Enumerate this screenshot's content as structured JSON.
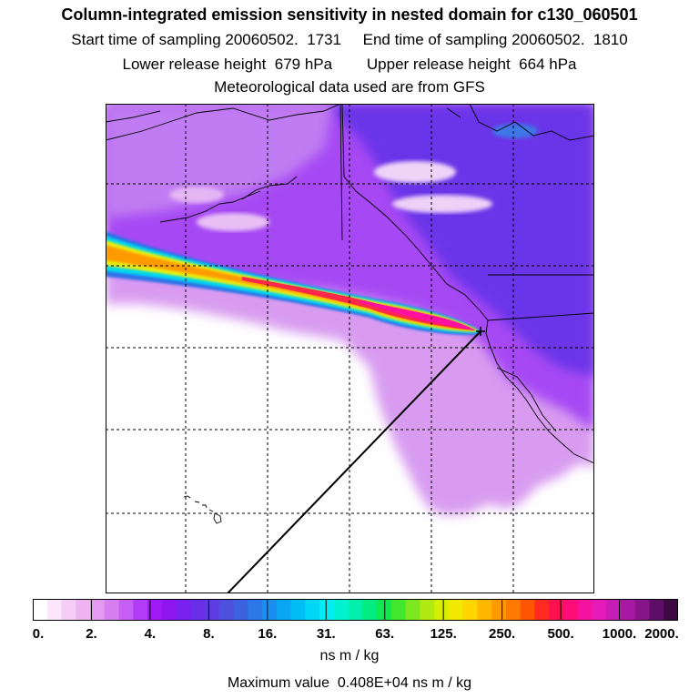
{
  "header": {
    "title": "Column-integrated emission sensitivity in nested domain for c130_060501",
    "sampling": "Start time of sampling 20060502.  1731     End time of sampling 20060502.  1810",
    "release": "Lower release height  679 hPa        Upper release height  664 hPa",
    "met": "Meteorological data used are from GFS"
  },
  "colorbar": {
    "unit": "ns m / kg",
    "tick_labels": [
      "0.",
      "2.",
      "4.",
      "8.",
      "16.",
      "31.",
      "63.",
      "125.",
      "250.",
      "500.",
      "1000.",
      "2000."
    ],
    "colors": [
      "#ffffff",
      "#fbe6fb",
      "#f6cdf6",
      "#f0b3f2",
      "#e39bf0",
      "#d77ff0",
      "#c55ff3",
      "#b03cf5",
      "#a01af5",
      "#8e14f0",
      "#7a20ee",
      "#6a2ee8",
      "#5d3de2",
      "#4d4fdd",
      "#3d62e0",
      "#2c78e8",
      "#1b8ff0",
      "#0aa6f2",
      "#00bdf3",
      "#00d6f5",
      "#00eef2",
      "#00f2d0",
      "#00efaa",
      "#00ec80",
      "#10e850",
      "#40e830",
      "#7de820",
      "#b0ea10",
      "#d8ee00",
      "#f2e800",
      "#ffd600",
      "#ffb800",
      "#ff9a00",
      "#ff7a00",
      "#ff5500",
      "#ff2a20",
      "#ff1050",
      "#ff0d78",
      "#f512a0",
      "#e51ab8",
      "#c81cb6",
      "#a818a2",
      "#88148a",
      "#5e0e66",
      "#3e0a44"
    ]
  },
  "footer": {
    "max_value": "Maximum value  0.408E+04 ns m / kg"
  }
}
